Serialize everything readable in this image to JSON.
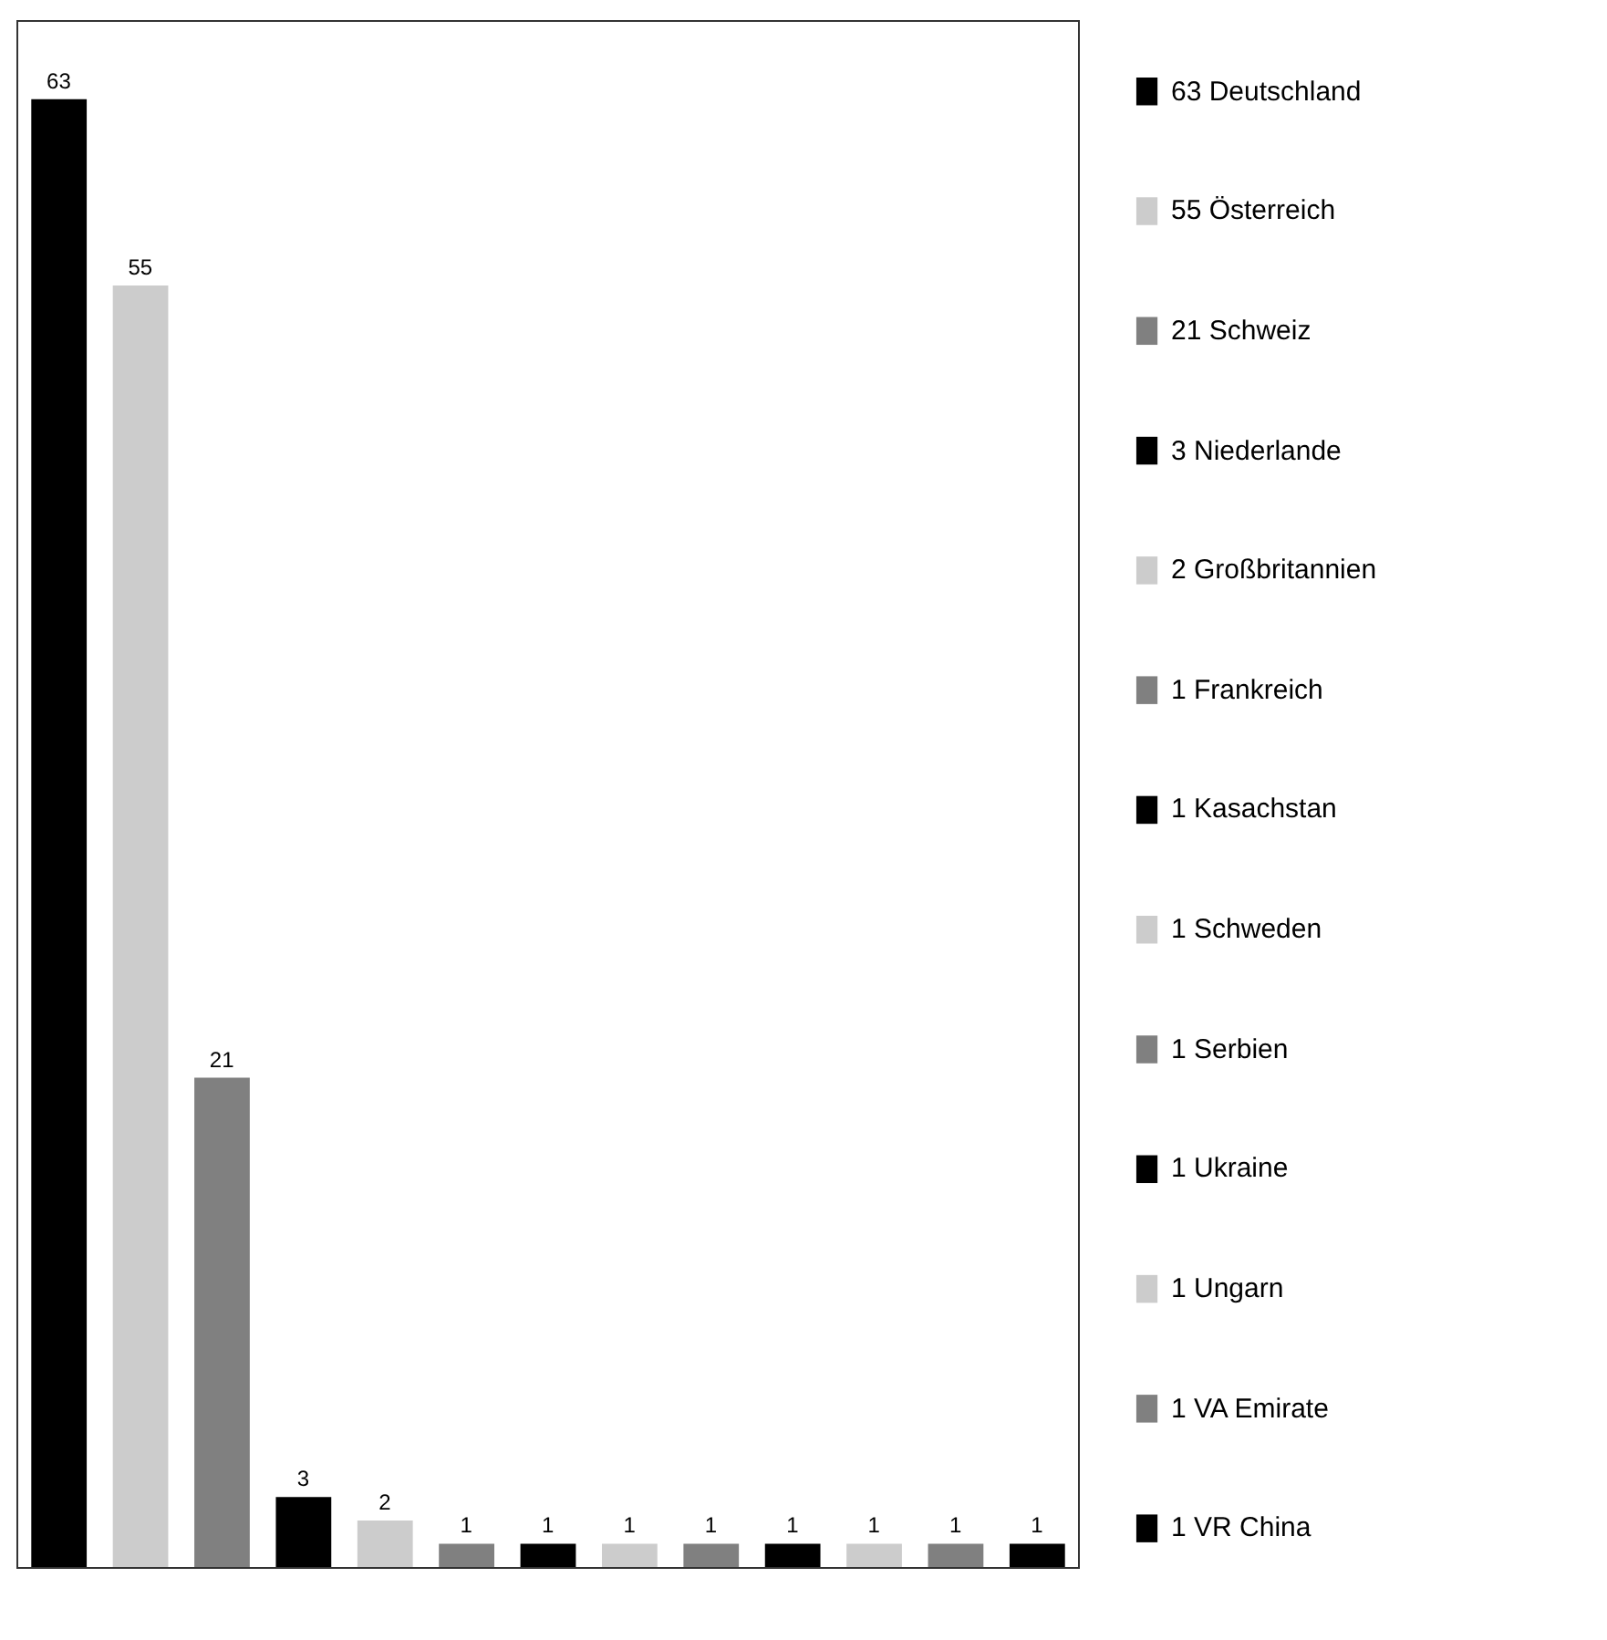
{
  "chart_data": {
    "type": "bar",
    "categories": [
      null,
      null,
      null,
      null,
      null,
      null,
      null,
      null,
      null,
      null,
      null,
      null,
      null
    ],
    "values": [
      63,
      55,
      21,
      3,
      2,
      1,
      1,
      1,
      1,
      1,
      1,
      1,
      1
    ],
    "colors": [
      "#000000",
      "#cccccc",
      "#808080",
      "#000000",
      "#cccccc",
      "#808080",
      "#000000",
      "#cccccc",
      "#808080",
      "#000000",
      "#cccccc",
      "#808080",
      "#000000"
    ],
    "data_labels": true,
    "tick_labels": false,
    "annotations": [
      "63 Deutschland",
      "55 Österreich",
      "21 Schweiz",
      "3 Niederlande",
      "2 Großbritannien",
      "1 Frankreich",
      "1 Kasachstan",
      "1 Schweden",
      "1 Serbien",
      "1 Ukraine",
      "1 Ungarn",
      "1 VA Emirate",
      "1 VR China"
    ]
  }
}
